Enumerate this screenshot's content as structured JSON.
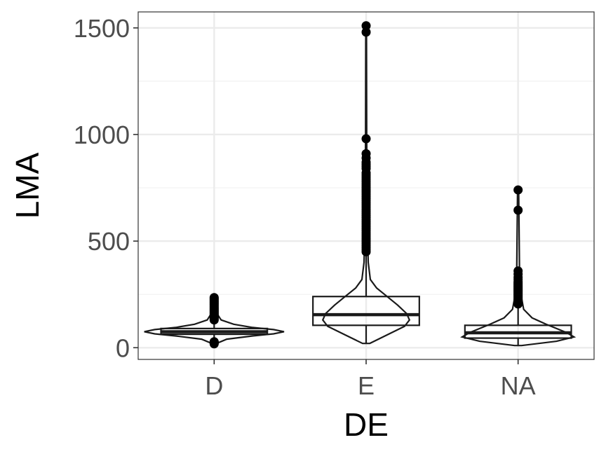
{
  "chart_data": {
    "type": "box",
    "xlabel": "DE",
    "ylabel": "LMA",
    "categories": [
      "D",
      "E",
      "NA"
    ],
    "ylim": [
      -55,
      1575
    ],
    "y_ticks": [
      0,
      500,
      1000,
      1500
    ],
    "grid": true,
    "boxes": [
      {
        "category": "D",
        "q1": 63,
        "median": 75,
        "q3": 90,
        "whisker_low": 30,
        "whisker_high": 128,
        "outliers": [
          18,
          22,
          25,
          28,
          130,
          135,
          140,
          145,
          150,
          155,
          160,
          165,
          170,
          175,
          180,
          185,
          190,
          195,
          200,
          205,
          210,
          215,
          220,
          225,
          230,
          235
        ]
      },
      {
        "category": "E",
        "q1": 105,
        "median": 155,
        "q3": 240,
        "whisker_low": 20,
        "whisker_high": 440,
        "outliers": [
          450,
          460,
          470,
          480,
          490,
          500,
          510,
          520,
          530,
          540,
          550,
          560,
          570,
          580,
          590,
          600,
          610,
          620,
          630,
          640,
          650,
          660,
          670,
          680,
          690,
          700,
          710,
          720,
          730,
          740,
          750,
          760,
          770,
          780,
          790,
          800,
          810,
          820,
          840,
          850,
          860,
          870,
          890,
          910,
          980,
          1480,
          1510
        ]
      },
      {
        "category": "NA",
        "q1": 45,
        "median": 70,
        "q3": 105,
        "whisker_low": 10,
        "whisker_high": 200,
        "outliers": [
          205,
          210,
          215,
          220,
          225,
          230,
          235,
          240,
          245,
          250,
          255,
          260,
          265,
          270,
          275,
          280,
          285,
          290,
          295,
          300,
          305,
          310,
          320,
          330,
          345,
          360,
          645,
          740
        ]
      }
    ],
    "violins": [
      {
        "category": "D",
        "profile": [
          [
            18,
            0.02
          ],
          [
            40,
            0.18
          ],
          [
            55,
            0.55
          ],
          [
            65,
            0.85
          ],
          [
            75,
            1.0
          ],
          [
            85,
            0.85
          ],
          [
            95,
            0.55
          ],
          [
            110,
            0.28
          ],
          [
            130,
            0.1
          ],
          [
            160,
            0.04
          ],
          [
            200,
            0.02
          ],
          [
            235,
            0.01
          ]
        ]
      },
      {
        "category": "E",
        "profile": [
          [
            20,
            0.05
          ],
          [
            60,
            0.3
          ],
          [
            100,
            0.55
          ],
          [
            130,
            0.62
          ],
          [
            160,
            0.58
          ],
          [
            200,
            0.45
          ],
          [
            240,
            0.3
          ],
          [
            280,
            0.15
          ],
          [
            320,
            0.06
          ],
          [
            400,
            0.03
          ],
          [
            600,
            0.015
          ],
          [
            1000,
            0.008
          ],
          [
            1510,
            0.005
          ]
        ]
      },
      {
        "category": "NA",
        "profile": [
          [
            10,
            0.05
          ],
          [
            30,
            0.55
          ],
          [
            50,
            0.8
          ],
          [
            70,
            0.7
          ],
          [
            90,
            0.55
          ],
          [
            110,
            0.4
          ],
          [
            140,
            0.2
          ],
          [
            180,
            0.08
          ],
          [
            250,
            0.04
          ],
          [
            360,
            0.02
          ],
          [
            740,
            0.008
          ]
        ]
      }
    ]
  }
}
